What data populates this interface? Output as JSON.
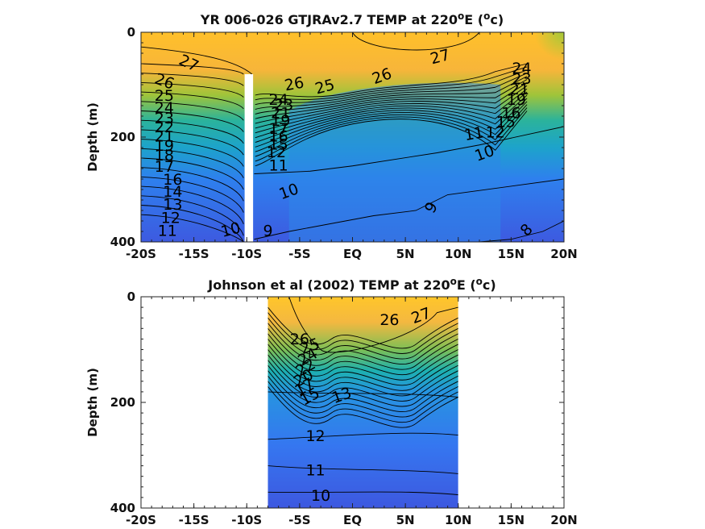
{
  "chart_data": [
    {
      "type": "contour",
      "title_main": "YR 006-026 GTJRAv2.7 TEMP at 220",
      "title_sup": "o",
      "title_mid": "E (",
      "title_unit_sup": "o",
      "title_end": "c)",
      "ylabel": "Depth (m)",
      "xlim": [
        -20,
        20
      ],
      "ylim": [
        400,
        0
      ],
      "x_ticks": [
        -20,
        -15,
        -10,
        -5,
        0,
        5,
        10,
        15,
        20
      ],
      "x_tick_labels": [
        "-20S",
        "-15S",
        "-10S",
        "-5S",
        "EQ",
        "5N",
        "10N",
        "15N",
        "20N"
      ],
      "y_ticks": [
        0,
        200,
        400
      ],
      "y_tick_labels": [
        "0",
        "200",
        "400"
      ],
      "data_extent_x": [
        -20,
        20
      ],
      "gap": {
        "x": [
          -10.2,
          -9.4
        ],
        "depth": [
          80,
          400
        ]
      },
      "contour_labels": [
        {
          "x": -15.5,
          "y": 60,
          "text": "27",
          "angle": 25
        },
        {
          "x": -17.8,
          "y": 95,
          "text": "26",
          "angle": 20
        },
        {
          "x": -17.8,
          "y": 122,
          "text": "25",
          "angle": 0
        },
        {
          "x": -17.8,
          "y": 145,
          "text": "24",
          "angle": 0
        },
        {
          "x": -17.8,
          "y": 165,
          "text": "23",
          "angle": 0
        },
        {
          "x": -17.8,
          "y": 182,
          "text": "22",
          "angle": 0
        },
        {
          "x": -17.8,
          "y": 200,
          "text": "21",
          "angle": 0
        },
        {
          "x": -17.8,
          "y": 218,
          "text": "19",
          "angle": 0
        },
        {
          "x": -17.8,
          "y": 236,
          "text": "18",
          "angle": 0
        },
        {
          "x": -17.8,
          "y": 258,
          "text": "17",
          "angle": 0
        },
        {
          "x": -17.0,
          "y": 282,
          "text": "16",
          "angle": 0
        },
        {
          "x": -17.0,
          "y": 305,
          "text": "14",
          "angle": 0
        },
        {
          "x": -17.0,
          "y": 330,
          "text": "13",
          "angle": 0
        },
        {
          "x": -17.2,
          "y": 355,
          "text": "12",
          "angle": 0
        },
        {
          "x": -17.5,
          "y": 380,
          "text": "11",
          "angle": 0
        },
        {
          "x": -11.5,
          "y": 378,
          "text": "10",
          "angle": -15
        },
        {
          "x": -8.0,
          "y": 380,
          "text": "9",
          "angle": 0
        },
        {
          "x": -5.5,
          "y": 100,
          "text": "26",
          "angle": -10
        },
        {
          "x": -2.6,
          "y": 105,
          "text": "25",
          "angle": -15
        },
        {
          "x": -7.0,
          "y": 130,
          "text": "24",
          "angle": 0
        },
        {
          "x": -6.5,
          "y": 140,
          "text": "23",
          "angle": 0
        },
        {
          "x": -6.8,
          "y": 155,
          "text": "21",
          "angle": 0
        },
        {
          "x": -6.8,
          "y": 170,
          "text": "19",
          "angle": 0
        },
        {
          "x": -7.0,
          "y": 185,
          "text": "17",
          "angle": 0
        },
        {
          "x": -7.0,
          "y": 200,
          "text": "16",
          "angle": 0
        },
        {
          "x": -7.0,
          "y": 215,
          "text": "15",
          "angle": 0
        },
        {
          "x": -7.2,
          "y": 230,
          "text": "12",
          "angle": 0
        },
        {
          "x": -7.0,
          "y": 255,
          "text": "11",
          "angle": 0
        },
        {
          "x": -6.0,
          "y": 305,
          "text": "10",
          "angle": -20
        },
        {
          "x": 2.8,
          "y": 85,
          "text": "26",
          "angle": -20
        },
        {
          "x": 8.3,
          "y": 48,
          "text": "27",
          "angle": -15
        },
        {
          "x": 16.0,
          "y": 70,
          "text": "24",
          "angle": 0
        },
        {
          "x": 16.0,
          "y": 90,
          "text": "23",
          "angle": 0
        },
        {
          "x": 15.8,
          "y": 110,
          "text": "21",
          "angle": 0
        },
        {
          "x": 15.5,
          "y": 130,
          "text": "19",
          "angle": 0
        },
        {
          "x": 15.0,
          "y": 155,
          "text": "16",
          "angle": 0
        },
        {
          "x": 14.5,
          "y": 172,
          "text": "15",
          "angle": 0
        },
        {
          "x": 13.5,
          "y": 192,
          "text": "12",
          "angle": 0
        },
        {
          "x": 11.5,
          "y": 195,
          "text": "11",
          "angle": -10
        },
        {
          "x": 12.5,
          "y": 232,
          "text": "10",
          "angle": -20
        },
        {
          "x": 7.5,
          "y": 335,
          "text": "9",
          "angle": -60
        },
        {
          "x": 16.5,
          "y": 378,
          "text": "8",
          "angle": -45
        }
      ]
    },
    {
      "type": "contour",
      "title_main": "Johnson et al (2002) TEMP at 220",
      "title_sup": "o",
      "title_mid": "E (",
      "title_unit_sup": "o",
      "title_end": "c)",
      "ylabel": "Depth (m)",
      "xlim": [
        -20,
        20
      ],
      "ylim": [
        400,
        0
      ],
      "x_ticks": [
        -20,
        -15,
        -10,
        -5,
        0,
        5,
        10,
        15,
        20
      ],
      "x_tick_labels": [
        "-20S",
        "-15S",
        "-10S",
        "-5S",
        "EQ",
        "5N",
        "10N",
        "15N",
        "20N"
      ],
      "y_ticks": [
        0,
        200,
        400
      ],
      "y_tick_labels": [
        "0",
        "200",
        "400"
      ],
      "data_extent_x": [
        -8,
        10
      ],
      "contour_labels": [
        {
          "x": -5.0,
          "y": 82,
          "text": "26",
          "angle": 0
        },
        {
          "x": -4.0,
          "y": 95,
          "text": "25",
          "angle": -20
        },
        {
          "x": -4.2,
          "y": 115,
          "text": "24",
          "angle": -30
        },
        {
          "x": -4.4,
          "y": 135,
          "text": "22",
          "angle": -30
        },
        {
          "x": -4.6,
          "y": 155,
          "text": "20",
          "angle": -30
        },
        {
          "x": -4.5,
          "y": 172,
          "text": "17",
          "angle": -30
        },
        {
          "x": -4.0,
          "y": 190,
          "text": "15",
          "angle": -30
        },
        {
          "x": -1.0,
          "y": 188,
          "text": "13",
          "angle": -20
        },
        {
          "x": -3.5,
          "y": 265,
          "text": "12",
          "angle": 0
        },
        {
          "x": -3.5,
          "y": 330,
          "text": "11",
          "angle": 0
        },
        {
          "x": -3.0,
          "y": 378,
          "text": "10",
          "angle": 0
        },
        {
          "x": 3.5,
          "y": 45,
          "text": "26",
          "angle": 0
        },
        {
          "x": 6.5,
          "y": 37,
          "text": "27",
          "angle": -20
        }
      ]
    }
  ]
}
